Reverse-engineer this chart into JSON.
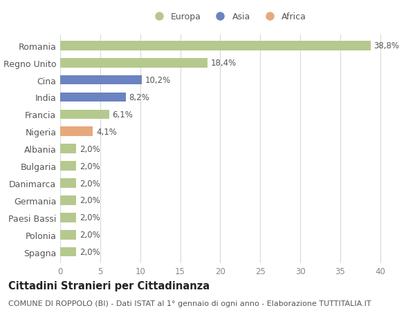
{
  "countries": [
    "Romania",
    "Regno Unito",
    "Cina",
    "India",
    "Francia",
    "Nigeria",
    "Albania",
    "Bulgaria",
    "Danimarca",
    "Germania",
    "Paesi Bassi",
    "Polonia",
    "Spagna"
  ],
  "values": [
    38.8,
    18.4,
    10.2,
    8.2,
    6.1,
    4.1,
    2.0,
    2.0,
    2.0,
    2.0,
    2.0,
    2.0,
    2.0
  ],
  "labels": [
    "38,8%",
    "18,4%",
    "10,2%",
    "8,2%",
    "6,1%",
    "4,1%",
    "2,0%",
    "2,0%",
    "2,0%",
    "2,0%",
    "2,0%",
    "2,0%",
    "2,0%"
  ],
  "colors": [
    "#b5c98e",
    "#b5c98e",
    "#6b83c0",
    "#6b83c0",
    "#b5c98e",
    "#e8a87c",
    "#b5c98e",
    "#b5c98e",
    "#b5c98e",
    "#b5c98e",
    "#b5c98e",
    "#b5c98e",
    "#b5c98e"
  ],
  "legend": [
    {
      "label": "Europa",
      "color": "#b5c98e"
    },
    {
      "label": "Asia",
      "color": "#6b83c0"
    },
    {
      "label": "Africa",
      "color": "#e8a87c"
    }
  ],
  "xlim": [
    0,
    42
  ],
  "xticks": [
    0,
    5,
    10,
    15,
    20,
    25,
    30,
    35,
    40
  ],
  "title": "Cittadini Stranieri per Cittadinanza",
  "subtitle": "COMUNE DI ROPPOLO (BI) - Dati ISTAT al 1° gennaio di ogni anno - Elaborazione TUTTITALIA.IT",
  "background_color": "#ffffff",
  "grid_color": "#d8d8d8",
  "bar_height": 0.55,
  "label_fontsize": 8.5,
  "tick_fontsize": 8.5,
  "ytick_fontsize": 9,
  "title_fontsize": 10.5,
  "subtitle_fontsize": 8
}
